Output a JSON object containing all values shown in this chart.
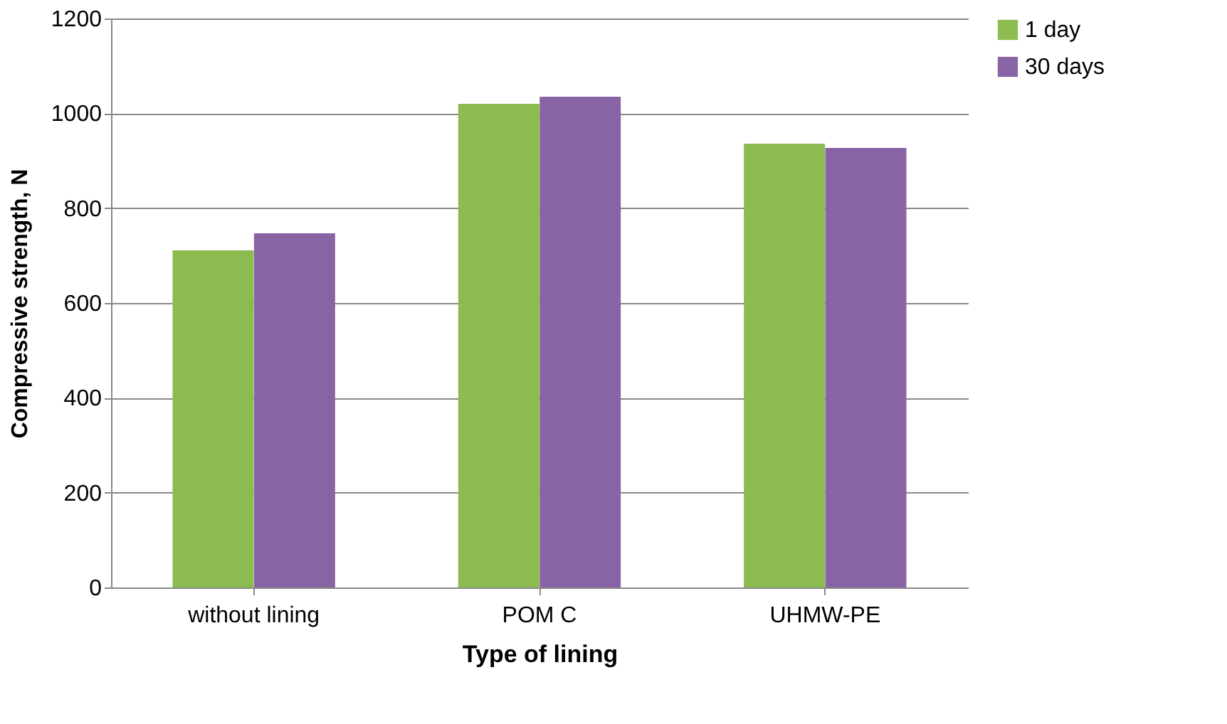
{
  "chart_data": {
    "type": "bar",
    "xlabel": "Type of lining",
    "ylabel": "Compressive strength, N",
    "categories": [
      "without lining",
      "POM C",
      "UHMW-PE"
    ],
    "series": [
      {
        "name": "1 day",
        "color": "#8cbb4f",
        "values": [
          711,
          1020,
          936
        ]
      },
      {
        "name": "30 days",
        "color": "#8964a5",
        "values": [
          747,
          1035,
          927
        ]
      }
    ],
    "ylim": [
      0,
      1200
    ],
    "yticks": [
      0,
      200,
      400,
      600,
      800,
      1000,
      1200
    ],
    "grid": "y",
    "legend": "right"
  }
}
